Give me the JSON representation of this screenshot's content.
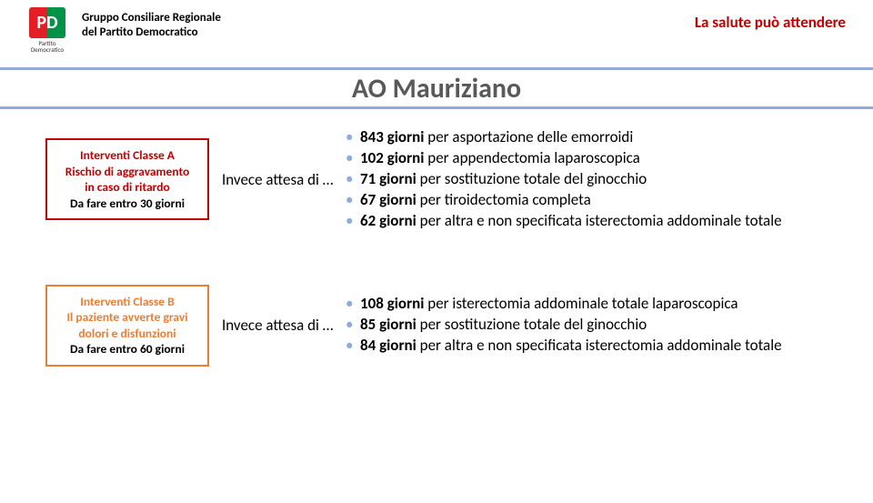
{
  "header": {
    "org_line1": "Gruppo Consiliare Regionale",
    "org_line2": "del Partito Democratico",
    "logo_letters": "PD",
    "logo_sub": "Partito Democratico",
    "tagline": "La salute può attendere"
  },
  "title": "AO Mauriziano",
  "colors": {
    "band_border": "#8faadc",
    "title_text": "#595959",
    "red": "#c00000",
    "orange": "#ed7d31",
    "bullet": "#8faadc"
  },
  "sections": [
    {
      "badge": {
        "variant": "red",
        "line1": "Interventi Classe A",
        "line2": "Rischio di aggravamento",
        "line3": "in caso di ritardo",
        "deadline": "Da fare entro 30 giorni"
      },
      "lead": "Invece attesa di …",
      "items": [
        {
          "days": "843 giorni",
          "rest": " per asportazione delle emorroidi"
        },
        {
          "days": "102 giorni",
          "rest": " per appendectomia laparoscopica"
        },
        {
          "days": "71 giorni",
          "rest": " per sostituzione totale del ginocchio"
        },
        {
          "days": "67 giorni",
          "rest": " per tiroidectomia completa"
        },
        {
          "days": "62 giorni",
          "rest": " per altra e non specificata isterectomia addominale totale"
        }
      ]
    },
    {
      "badge": {
        "variant": "orange",
        "line1": "Interventi Classe B",
        "line2": "Il paziente avverte gravi",
        "line3": "dolori e disfunzioni",
        "deadline": "Da fare entro 60 giorni"
      },
      "lead": "Invece attesa di …",
      "items": [
        {
          "days": "108 giorni",
          "rest": " per isterectomia addominale totale laparoscopica"
        },
        {
          "days": "85 giorni",
          "rest": " per sostituzione totale del ginocchio"
        },
        {
          "days": "84 giorni",
          "rest": " per altra e non specificata isterectomia addominale totale"
        }
      ]
    }
  ]
}
